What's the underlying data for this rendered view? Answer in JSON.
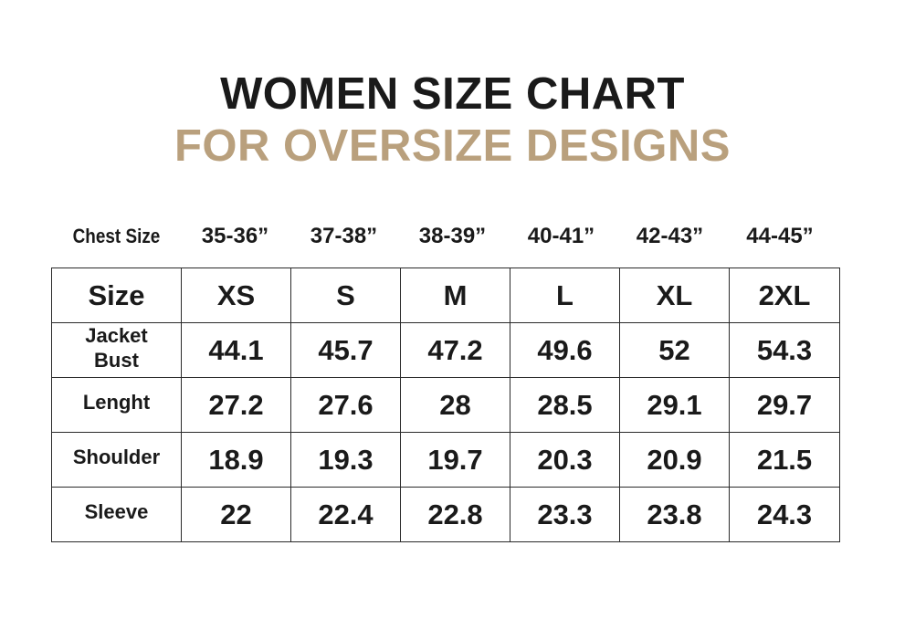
{
  "title": {
    "line1": "WOMEN SIZE CHART",
    "line2": "FOR OVERSIZE DESIGNS"
  },
  "colors": {
    "text": "#1a1a1a",
    "accent": "#b9a07d"
  },
  "chest": {
    "label": "Chest Size",
    "values": [
      "35-36”",
      "37-38”",
      "38-39”",
      "40-41”",
      "42-43”",
      "44-45”"
    ]
  },
  "table": {
    "header_label": "Size",
    "sizes": [
      "XS",
      "S",
      "M",
      "L",
      "XL",
      "2XL"
    ],
    "rows": [
      {
        "label_lines": [
          "Jacket",
          "Bust"
        ],
        "values": [
          "44.1",
          "45.7",
          "47.2",
          "49.6",
          "52",
          "54.3"
        ]
      },
      {
        "label": "Lenght",
        "values": [
          "27.2",
          "27.6",
          "28",
          "28.5",
          "29.1",
          "29.7"
        ]
      },
      {
        "label": "Shoulder",
        "values": [
          "18.9",
          "19.3",
          "19.7",
          "20.3",
          "20.9",
          "21.5"
        ]
      },
      {
        "label": "Sleeve",
        "values": [
          "22",
          "22.4",
          "22.8",
          "23.3",
          "23.8",
          "24.3"
        ]
      }
    ]
  }
}
